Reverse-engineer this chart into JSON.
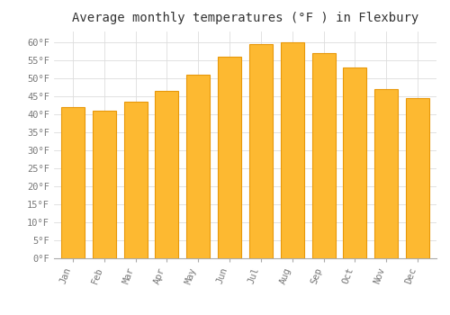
{
  "title": "Average monthly temperatures (°F ) in Flexbury",
  "months": [
    "Jan",
    "Feb",
    "Mar",
    "Apr",
    "May",
    "Jun",
    "Jul",
    "Aug",
    "Sep",
    "Oct",
    "Nov",
    "Dec"
  ],
  "values": [
    42,
    41,
    43.5,
    46.5,
    51,
    56,
    59.5,
    60,
    57,
    53,
    47,
    44.5
  ],
  "bar_color": "#FDB931",
  "bar_edge_color": "#E8980A",
  "ylim": [
    0,
    63
  ],
  "yticks": [
    0,
    5,
    10,
    15,
    20,
    25,
    30,
    35,
    40,
    45,
    50,
    55,
    60
  ],
  "ytick_labels": [
    "0°F",
    "5°F",
    "10°F",
    "15°F",
    "20°F",
    "25°F",
    "30°F",
    "35°F",
    "40°F",
    "45°F",
    "50°F",
    "55°F",
    "60°F"
  ],
  "background_color": "#ffffff",
  "grid_color": "#dddddd",
  "title_fontsize": 10,
  "tick_fontsize": 7.5,
  "font_family": "monospace"
}
